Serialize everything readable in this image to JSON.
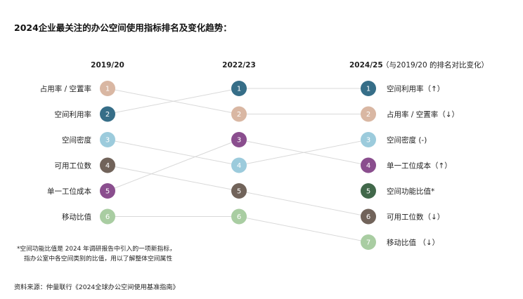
{
  "chart_data": {
    "type": "bump",
    "title": "2024企业最关注的办公空间使用指标排名及变化趋势：",
    "columns": [
      {
        "label": "2019/20",
        "note": ""
      },
      {
        "label": "2022/23",
        "note": ""
      },
      {
        "label": "2024/25",
        "note": "（与2019/20 的排名对比变化）"
      }
    ],
    "first_column_labels": [
      "占用率 / 空置率",
      "空间利用率",
      "空间密度",
      "可用工位数",
      "单一工位成本",
      "移动比值"
    ],
    "last_column_labels": [
      "空间利用率（↑）",
      "占用率 / 空置率（↓）",
      "空间密度 (-)",
      "单一工位成本（↑）",
      "空间功能比值*",
      "可用工位数（↓）",
      "移动比值 （↓）"
    ],
    "series": [
      {
        "name": "占用率 / 空置率",
        "color": "#d9b7a3",
        "ranks": [
          1,
          2,
          2
        ]
      },
      {
        "name": "空间利用率",
        "color": "#366e88",
        "ranks": [
          2,
          1,
          1
        ]
      },
      {
        "name": "空间密度",
        "color": "#9ccbdc",
        "ranks": [
          3,
          4,
          3
        ]
      },
      {
        "name": "可用工位数",
        "color": "#71635a",
        "ranks": [
          4,
          5,
          6
        ]
      },
      {
        "name": "单一工位成本",
        "color": "#8a4e8e",
        "ranks": [
          5,
          3,
          4
        ]
      },
      {
        "name": "移动比值",
        "color": "#a9cda2",
        "ranks": [
          6,
          6,
          7
        ]
      },
      {
        "name": "空间功能比值",
        "color": "#41684a",
        "ranks": [
          null,
          null,
          5
        ]
      }
    ]
  },
  "footnote": [
    "*空间功能比值是 2024 年调研报告中引入的一项新指标，",
    "指办公室中各空间类别的比值，用以了解整体空间属性"
  ],
  "source": "资料来源：仲量联行《2024全球办公空间使用基准指南》"
}
